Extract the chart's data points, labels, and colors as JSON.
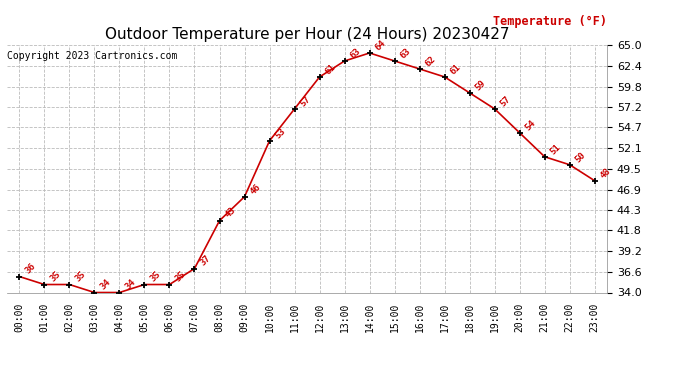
{
  "title": "Outdoor Temperature per Hour (24 Hours) 20230427",
  "copyright": "Copyright 2023 Cartronics.com",
  "legend_label": "Temperature (°F)",
  "hours": [
    "00:00",
    "01:00",
    "02:00",
    "03:00",
    "04:00",
    "05:00",
    "06:00",
    "07:00",
    "08:00",
    "09:00",
    "10:00",
    "11:00",
    "12:00",
    "13:00",
    "14:00",
    "15:00",
    "16:00",
    "17:00",
    "18:00",
    "19:00",
    "20:00",
    "21:00",
    "22:00",
    "23:00"
  ],
  "temps": [
    36,
    35,
    35,
    34,
    34,
    35,
    35,
    37,
    43,
    46,
    53,
    57,
    61,
    63,
    64,
    63,
    62,
    61,
    59,
    57,
    54,
    51,
    50,
    48
  ],
  "line_color": "#cc0000",
  "marker_color": "#000000",
  "grid_color": "#bbbbbb",
  "bg_color": "#ffffff",
  "ylim_min": 34.0,
  "ylim_max": 65.0,
  "yticks": [
    34.0,
    36.6,
    39.2,
    41.8,
    44.3,
    46.9,
    49.5,
    52.1,
    54.7,
    57.2,
    59.8,
    62.4,
    65.0
  ],
  "title_fontsize": 11,
  "label_fontsize": 7.5,
  "annotation_fontsize": 6.5,
  "copyright_fontsize": 7,
  "legend_fontsize": 8.5,
  "ytick_fontsize": 8,
  "xtick_fontsize": 7
}
